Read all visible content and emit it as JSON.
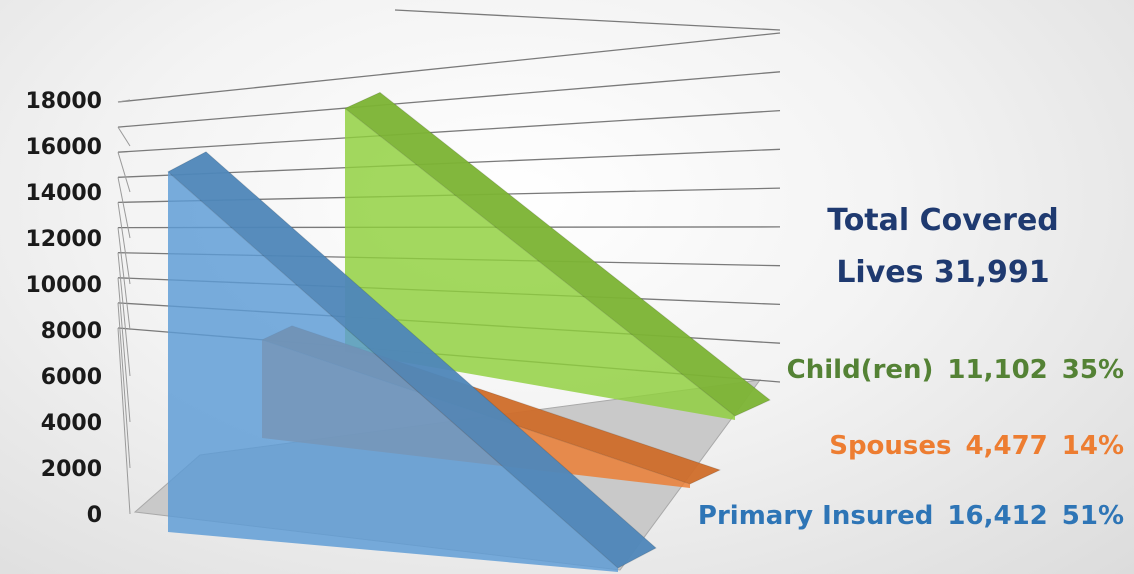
{
  "chart_data": {
    "type": "area",
    "ylim": [
      0,
      18000
    ],
    "y_ticks": [
      "0",
      "2000",
      "4000",
      "6000",
      "8000",
      "10000",
      "12000",
      "14000",
      "16000",
      "18000"
    ],
    "series": [
      {
        "name": "Child(ren)",
        "value": 11102,
        "value_label": "11,102",
        "percent_label": "35%",
        "color": "#8fcf3c"
      },
      {
        "name": "Spouses",
        "value": 4477,
        "value_label": "4,477",
        "percent_label": "14%",
        "color": "#ed7d31"
      },
      {
        "name": "Primary Insured",
        "value": 16412,
        "value_label": "16,412",
        "percent_label": "51%",
        "color": "#5b9bd5"
      }
    ],
    "total": {
      "line1": "Total Covered",
      "line2": "Lives 31,991"
    },
    "legend_colors": {
      "Child(ren)": "#548235",
      "Spouses": "#ed7d31",
      "Primary Insured": "#2e75b6"
    },
    "grid": true
  }
}
